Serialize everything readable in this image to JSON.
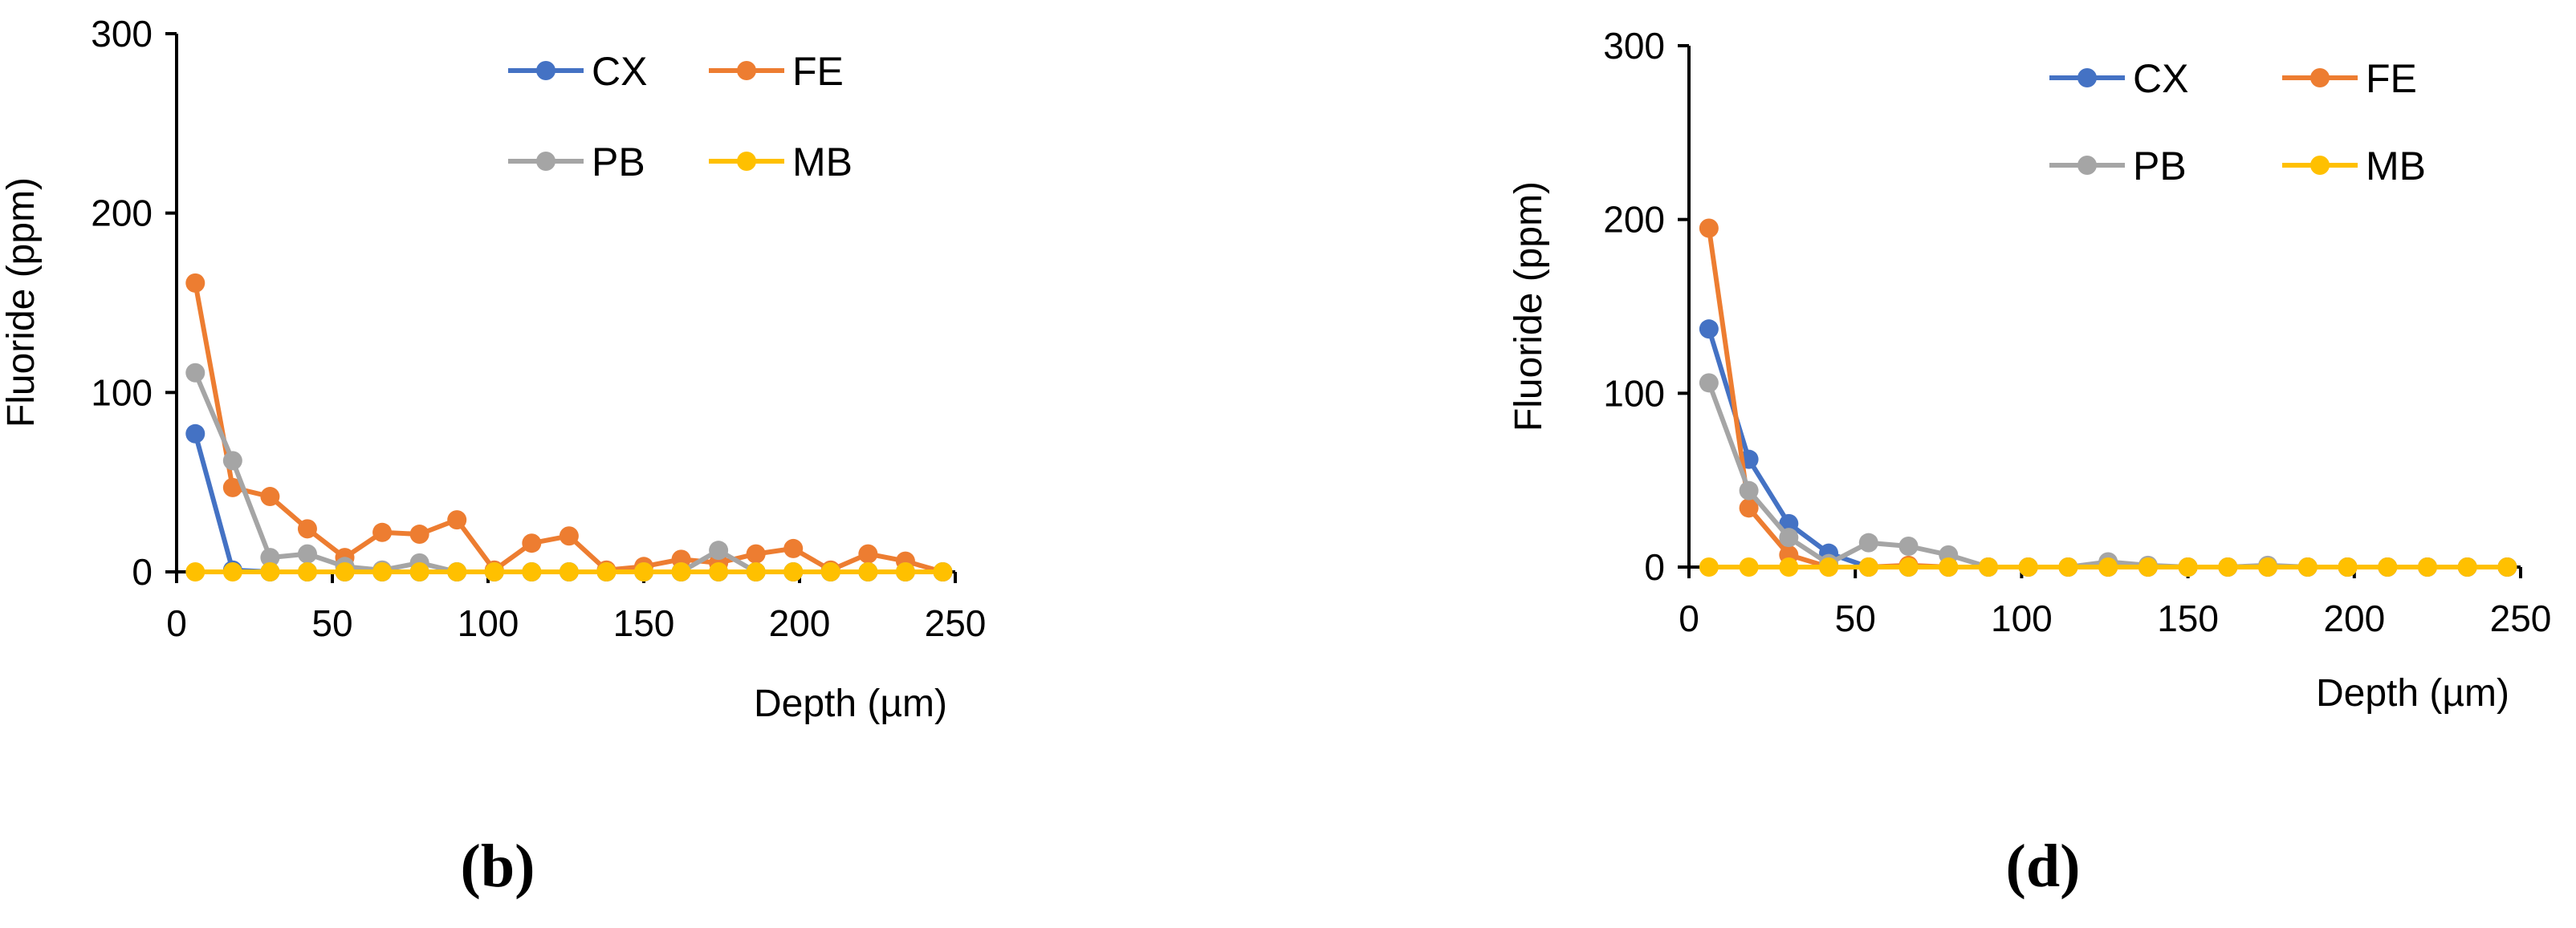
{
  "chart_data": [
    {
      "type": "line",
      "panel_label": "(b)",
      "xlabel": "Depth (µm)",
      "ylabel": "Fluoride (ppm)",
      "xlim": [
        0,
        250
      ],
      "ylim": [
        0,
        300
      ],
      "xticks": [
        0,
        50,
        100,
        150,
        200,
        250
      ],
      "yticks": [
        0,
        100,
        200,
        300
      ],
      "grid": false,
      "legend_position": "top-right",
      "x": [
        6,
        18,
        30,
        42,
        54,
        66,
        78,
        90,
        102,
        114,
        126,
        138,
        150,
        162,
        174,
        186,
        198,
        210,
        222,
        234,
        246
      ],
      "series": [
        {
          "name": "CX",
          "color": "#4472C4",
          "values": [
            77,
            1,
            0,
            0,
            0,
            0,
            0,
            0,
            0,
            0,
            0,
            0,
            0,
            0,
            0,
            0,
            0,
            0,
            0,
            0,
            0
          ]
        },
        {
          "name": "FE",
          "color": "#ED7D31",
          "values": [
            161,
            47,
            42,
            24,
            8,
            22,
            21,
            29,
            1,
            16,
            20,
            1,
            3,
            7,
            5,
            10,
            13,
            1,
            10,
            6,
            0
          ]
        },
        {
          "name": "PB",
          "color": "#A5A5A5",
          "values": [
            111,
            62,
            8,
            10,
            3,
            1,
            5,
            0,
            0,
            0,
            0,
            0,
            0,
            0,
            12,
            0,
            0,
            0,
            0,
            0,
            0
          ]
        },
        {
          "name": "MB",
          "color": "#FFC000",
          "values": [
            0,
            0,
            0,
            0,
            0,
            0,
            0,
            0,
            0,
            0,
            0,
            0,
            0,
            0,
            0,
            0,
            0,
            0,
            0,
            0,
            0
          ]
        }
      ]
    },
    {
      "type": "line",
      "panel_label": "(d)",
      "xlabel": "Depth (µm)",
      "ylabel": "Fluoride (ppm)",
      "xlim": [
        0,
        250
      ],
      "ylim": [
        0,
        300
      ],
      "xticks": [
        0,
        50,
        100,
        150,
        200,
        250
      ],
      "yticks": [
        0,
        100,
        200,
        300
      ],
      "grid": false,
      "legend_position": "top-right",
      "x": [
        6,
        18,
        30,
        42,
        54,
        66,
        78,
        90,
        102,
        114,
        126,
        138,
        150,
        162,
        174,
        186,
        198,
        210,
        222,
        234,
        246
      ],
      "series": [
        {
          "name": "CX",
          "color": "#4472C4",
          "values": [
            137,
            62,
            25,
            8,
            0,
            0,
            0,
            0,
            0,
            0,
            0,
            0,
            0,
            0,
            0,
            0,
            0,
            0,
            0,
            0,
            0
          ]
        },
        {
          "name": "FE",
          "color": "#ED7D31",
          "values": [
            195,
            34,
            7,
            0,
            0,
            1,
            0,
            0,
            0,
            0,
            0,
            0,
            0,
            0,
            0,
            0,
            0,
            0,
            0,
            0,
            0
          ]
        },
        {
          "name": "PB",
          "color": "#A5A5A5",
          "values": [
            106,
            44,
            17,
            2,
            14,
            12,
            7,
            0,
            0,
            0,
            3,
            1,
            0,
            0,
            1,
            0,
            0,
            0,
            0,
            0,
            0
          ]
        },
        {
          "name": "MB",
          "color": "#FFC000",
          "values": [
            0,
            0,
            0,
            0,
            0,
            0,
            0,
            0,
            0,
            0,
            0,
            0,
            0,
            0,
            0,
            0,
            0,
            0,
            0,
            0,
            0
          ]
        }
      ]
    }
  ]
}
